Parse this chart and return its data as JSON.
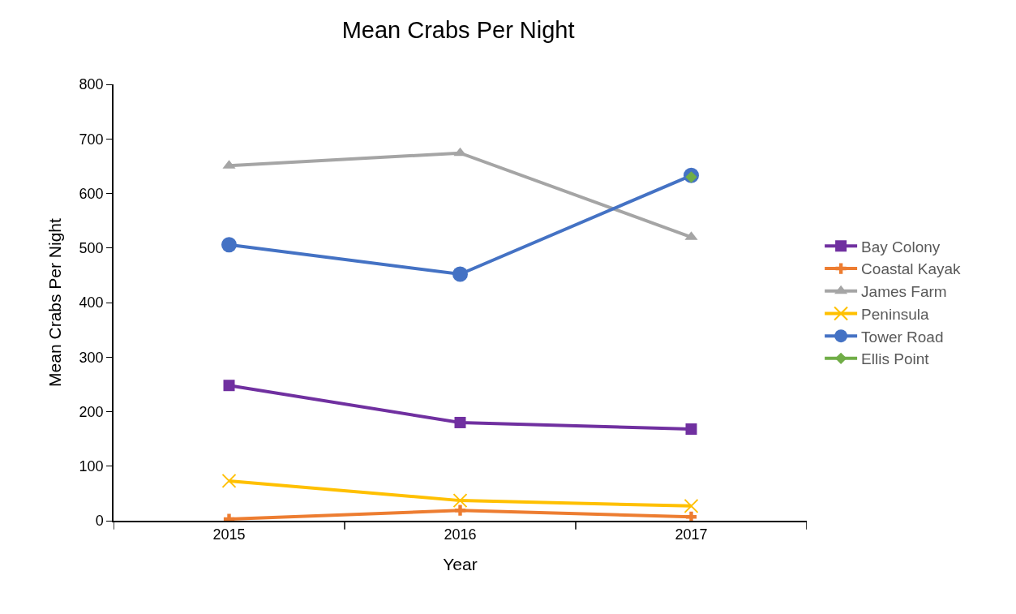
{
  "chart_data": {
    "type": "line",
    "title": "Mean Crabs Per Night",
    "xlabel": "Year",
    "ylabel": "Mean Crabs Per Night",
    "categories": [
      "2015",
      "2016",
      "2017"
    ],
    "series": [
      {
        "name": "Bay Colony",
        "color": "#7030a0",
        "marker": "square",
        "values": [
          248,
          180,
          168
        ]
      },
      {
        "name": "Coastal Kayak",
        "color": "#ed7d31",
        "marker": "cross",
        "values": [
          3,
          19,
          7
        ]
      },
      {
        "name": "James Farm",
        "color": "#a5a5a5",
        "marker": "triangle",
        "values": [
          651,
          674,
          520
        ]
      },
      {
        "name": "Peninsula",
        "color": "#ffc000",
        "marker": "x",
        "values": [
          73,
          37,
          27
        ]
      },
      {
        "name": "Tower Road",
        "color": "#4472c4",
        "marker": "circle",
        "values": [
          506,
          452,
          633
        ]
      },
      {
        "name": "Ellis Point",
        "color": "#70ad47",
        "marker": "diamond",
        "values": [
          null,
          null,
          630
        ]
      }
    ],
    "ylim": [
      0,
      800
    ],
    "yticks": [
      0,
      100,
      200,
      300,
      400,
      500,
      600,
      700,
      800
    ],
    "grid": false,
    "legend": "right",
    "line_style": "solid"
  }
}
